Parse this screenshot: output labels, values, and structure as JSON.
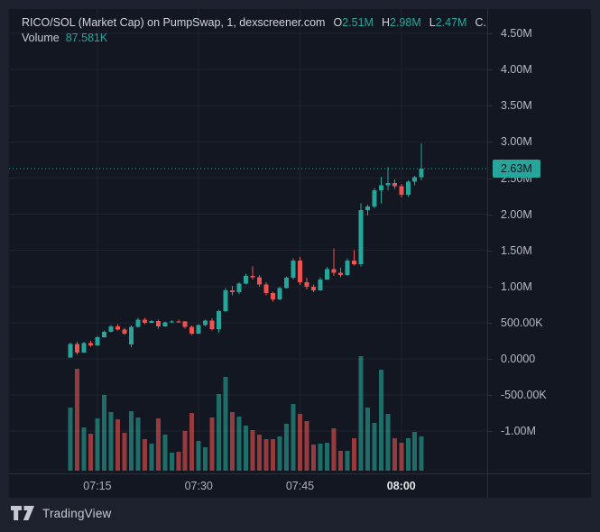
{
  "header": {
    "title": "RICO/SOL (Market Cap) on PumpSwap, 1, dexscreener.com",
    "open_label": "O",
    "open_value": "2.51M",
    "high_label": "H",
    "high_value": "2.98M",
    "low_label": "L",
    "low_value": "2.47M",
    "close_label": "C...",
    "volume_label": "Volume",
    "volume_value": "87.581K"
  },
  "chart_data": {
    "type": "candlestick_with_volume",
    "title": "RICO/SOL (Market Cap) on PumpSwap, 1, dexscreener.com",
    "interval": "1 minute",
    "value_unit": "thousands (K) of market cap",
    "ylim_k": [
      -1580,
      4840
    ],
    "grid": "on",
    "current_price": {
      "label": "2.63M",
      "value_k": 2630
    },
    "last_candle_ohlc": {
      "open": "2.51M",
      "high": "2.98M",
      "low": "2.47M",
      "close": "2.63M"
    },
    "last_volume_k": 87.581,
    "candles": [
      [
        "07:11",
        20,
        225,
        12,
        205,
        161
      ],
      [
        "07:12",
        205,
        240,
        55,
        90,
        260
      ],
      [
        "07:13",
        90,
        235,
        85,
        220,
        111
      ],
      [
        "07:14",
        220,
        250,
        170,
        185,
        94
      ],
      [
        "07:15",
        185,
        320,
        178,
        300,
        134
      ],
      [
        "07:16",
        300,
        390,
        290,
        375,
        194
      ],
      [
        "07:17",
        375,
        465,
        368,
        450,
        150
      ],
      [
        "07:18",
        450,
        480,
        390,
        405,
        131
      ],
      [
        "07:19",
        405,
        430,
        330,
        350,
        97
      ],
      [
        "07:20",
        200,
        460,
        160,
        445,
        152
      ],
      [
        "07:21",
        445,
        570,
        430,
        545,
        136
      ],
      [
        "07:22",
        545,
        565,
        480,
        500,
        81
      ],
      [
        "07:23",
        500,
        535,
        490,
        525,
        69
      ],
      [
        "07:24",
        525,
        540,
        420,
        450,
        134
      ],
      [
        "07:25",
        450,
        520,
        440,
        505,
        92
      ],
      [
        "07:26",
        505,
        535,
        495,
        520,
        46
      ],
      [
        "07:27",
        520,
        545,
        500,
        515,
        48
      ],
      [
        "07:28",
        515,
        525,
        420,
        440,
        101
      ],
      [
        "07:29",
        440,
        460,
        330,
        350,
        147
      ],
      [
        "07:30",
        350,
        480,
        340,
        465,
        76
      ],
      [
        "07:31",
        465,
        540,
        450,
        530,
        60
      ],
      [
        "07:32",
        530,
        560,
        390,
        410,
        136
      ],
      [
        "07:33",
        410,
        680,
        360,
        660,
        196
      ],
      [
        "07:34",
        660,
        980,
        650,
        950,
        240
      ],
      [
        "07:35",
        950,
        1010,
        880,
        920,
        150
      ],
      [
        "07:36",
        920,
        1060,
        900,
        1040,
        138
      ],
      [
        "07:37",
        1040,
        1180,
        1030,
        1150,
        115
      ],
      [
        "07:38",
        1150,
        1280,
        1100,
        1130,
        104
      ],
      [
        "07:39",
        1130,
        1160,
        1000,
        1030,
        92
      ],
      [
        "07:40",
        1030,
        1060,
        880,
        910,
        81
      ],
      [
        "07:41",
        910,
        930,
        790,
        820,
        81
      ],
      [
        "07:42",
        820,
        1000,
        810,
        980,
        88
      ],
      [
        "07:43",
        980,
        1140,
        970,
        1120,
        120
      ],
      [
        "07:44",
        1120,
        1390,
        1100,
        1360,
        171
      ],
      [
        "07:45",
        1360,
        1410,
        1020,
        1060,
        145
      ],
      [
        "07:46",
        1060,
        1120,
        960,
        1000,
        127
      ],
      [
        "07:47",
        1000,
        1030,
        920,
        950,
        67
      ],
      [
        "07:48",
        950,
        1130,
        940,
        1100,
        69
      ],
      [
        "07:49",
        1100,
        1270,
        1090,
        1240,
        71
      ],
      [
        "07:50",
        1240,
        1530,
        1150,
        1190,
        108
      ],
      [
        "07:51",
        1190,
        1260,
        1130,
        1160,
        51
      ],
      [
        "07:52",
        1160,
        1390,
        1150,
        1360,
        51
      ],
      [
        "07:53",
        1360,
        1500,
        1290,
        1310,
        83
      ],
      [
        "07:54",
        1310,
        2150,
        1280,
        2060,
        293
      ],
      [
        "07:55",
        2060,
        2130,
        1980,
        2110,
        161
      ],
      [
        "07:56",
        2110,
        2360,
        2080,
        2330,
        122
      ],
      [
        "07:57",
        2330,
        2520,
        2150,
        2400,
        258
      ],
      [
        "07:58",
        2400,
        2650,
        2330,
        2430,
        145
      ],
      [
        "07:59",
        2430,
        2480,
        2350,
        2390,
        83
      ],
      [
        "08:00",
        2390,
        2420,
        2230,
        2270,
        71
      ],
      [
        "08:01",
        2270,
        2470,
        2240,
        2450,
        83
      ],
      [
        "08:02",
        2450,
        2530,
        2400,
        2510,
        99
      ],
      [
        "08:03",
        2510,
        2980,
        2470,
        2630,
        87.581
      ]
    ]
  },
  "price_axis": {
    "ticks": [
      {
        "label": "4.50M",
        "value_k": 4500
      },
      {
        "label": "4.00M",
        "value_k": 4000
      },
      {
        "label": "3.50M",
        "value_k": 3500
      },
      {
        "label": "3.00M",
        "value_k": 3000
      },
      {
        "label": "2.50M",
        "value_k": 2500
      },
      {
        "label": "2.00M",
        "value_k": 2000
      },
      {
        "label": "1.50M",
        "value_k": 1500
      },
      {
        "label": "1.00M",
        "value_k": 1000
      },
      {
        "label": "500.00K",
        "value_k": 500
      },
      {
        "label": "0.0000",
        "value_k": 0
      },
      {
        "label": "-500.00K",
        "value_k": -500
      },
      {
        "label": "-1.00M",
        "value_k": -1000
      }
    ],
    "current_label": "2.63M"
  },
  "time_axis": {
    "ticks": [
      {
        "label": "07:15",
        "bold": false
      },
      {
        "label": "07:30",
        "bold": false
      },
      {
        "label": "07:45",
        "bold": false
      },
      {
        "label": "08:00",
        "bold": true
      }
    ]
  },
  "footer": {
    "brand": "TradingView"
  },
  "colors": {
    "up": "#26a69a",
    "down": "#ef5350",
    "vol_up": "rgba(38,166,154,0.60)",
    "vol_down": "rgba(239,83,80,0.60)",
    "grid": "#1f2330",
    "pane_bg": "#131722",
    "outer_bg": "#1d212e",
    "axis_text": "#b7bac3",
    "current_line": "#26a69a"
  }
}
